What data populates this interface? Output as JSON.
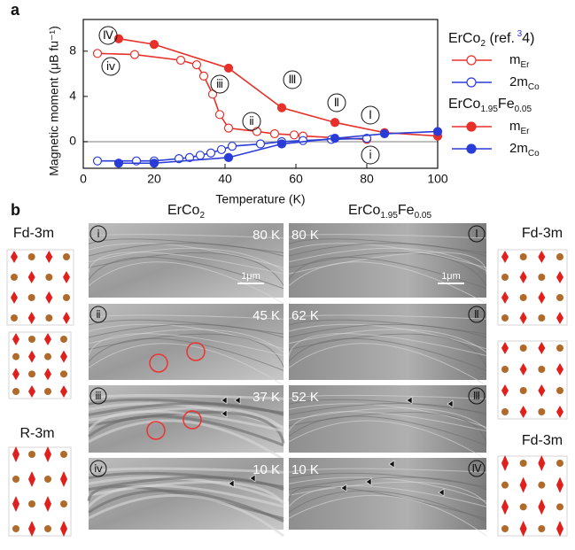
{
  "panel_label_a": "a",
  "chart_data": {
    "type": "line",
    "x_label": "Temperature (K)",
    "y_label": "Magnetic moment (μB fu⁻¹)",
    "xlim": [
      0,
      100
    ],
    "xticks": [
      0,
      20,
      40,
      60,
      80,
      100
    ],
    "ylim": [
      -2.35,
      10.8
    ],
    "yticks": [
      0,
      4,
      8
    ],
    "zero_line": true,
    "legend_groups": [
      "ErCo2 (ref. 34)",
      "ErCo1.95Fe0.05"
    ],
    "series": [
      {
        "name": "mEr",
        "color": "#e8302a",
        "filled": false,
        "x": [
          4,
          14.5,
          27.5,
          32,
          34,
          36.5,
          38.5,
          41,
          49,
          54,
          59.5,
          62,
          80
        ],
        "values": [
          7.8,
          7.7,
          7.2,
          6.8,
          5.8,
          4.2,
          2.4,
          1.2,
          0.9,
          0.7,
          0.6,
          0.5,
          0.2
        ]
      },
      {
        "name": "2mCo",
        "color": "#2a3cd8",
        "filled": false,
        "x": [
          4,
          15,
          20,
          27,
          30,
          33,
          36,
          39,
          42,
          50,
          56,
          62,
          70,
          80
        ],
        "values": [
          -1.7,
          -1.7,
          -1.7,
          -1.5,
          -1.4,
          -1.2,
          -1.0,
          -0.7,
          -0.4,
          -0.2,
          0.0,
          0.1,
          0.2,
          0.3
        ]
      },
      {
        "name": "mEr",
        "color": "#e8302a",
        "filled": true,
        "x": [
          10,
          20,
          41,
          56,
          71,
          85,
          100
        ],
        "values": [
          9.1,
          8.6,
          6.5,
          3.0,
          1.7,
          0.8,
          0.5
        ]
      },
      {
        "name": "2mCo",
        "color": "#2a3cd8",
        "filled": true,
        "x": [
          10,
          20,
          41,
          56,
          71,
          85,
          100
        ],
        "values": [
          -1.9,
          -1.9,
          -1.4,
          -0.2,
          0.3,
          0.7,
          0.9
        ]
      }
    ],
    "annotations": [
      "Ⅳ",
      "Ⅲ",
      "Ⅱ",
      "Ⅰ",
      "ⅳ",
      "ⅲ",
      "ⅱ",
      "ⅰ"
    ]
  },
  "panel_b": {
    "label": "b",
    "left_structures": [
      "Fd-3m",
      "R-3m"
    ],
    "right_structures": [
      "Fd-3m",
      "Fd-3m"
    ],
    "columns": [
      "ErCo2",
      "ErCo1.95Fe0.05"
    ],
    "scale_bar": "1μm",
    "rows": [
      {
        "left_marker": "ⅰ",
        "left_temp": "80 K",
        "right_temp": "80 K",
        "right_marker": "Ⅰ"
      },
      {
        "left_marker": "ⅱ",
        "left_temp": "45 K",
        "right_temp": "62 K",
        "right_marker": "Ⅱ"
      },
      {
        "left_marker": "ⅲ",
        "left_temp": "37 K",
        "right_temp": "52 K",
        "right_marker": "Ⅲ"
      },
      {
        "left_marker": "ⅳ",
        "left_temp": "10 K",
        "right_temp": "10 K",
        "right_marker": "Ⅳ"
      }
    ]
  }
}
